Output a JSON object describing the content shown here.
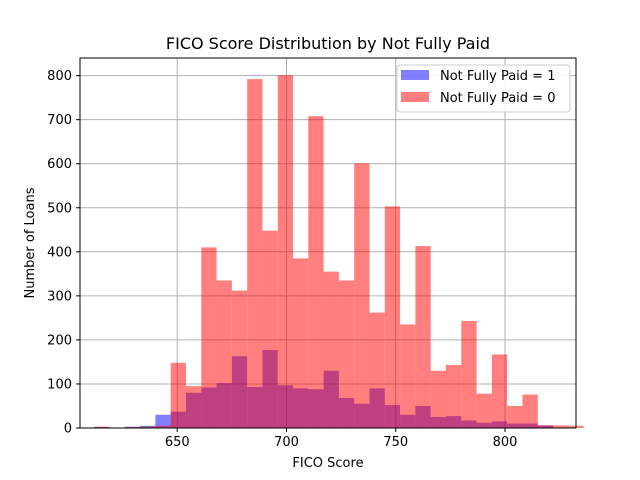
{
  "chart_data": {
    "type": "histogram",
    "title": "FICO Score Distribution by Not Fully Paid",
    "xlabel": "FICO Score",
    "ylabel": "Number of Loans",
    "xlim": [
      605.5,
      832.5
    ],
    "ylim": [
      0,
      840
    ],
    "xticks": [
      650,
      700,
      750,
      800
    ],
    "yticks": [
      0,
      100,
      200,
      300,
      400,
      500,
      600,
      700,
      800
    ],
    "grid": true,
    "legend_position": "top-right",
    "series": [
      {
        "name": "Not Fully Paid = 1",
        "color": "#0000ff",
        "opacity": 0.5,
        "bin_start": 612,
        "bin_width": 7,
        "values": [
          2,
          0,
          3,
          5,
          30,
          37,
          80,
          92,
          102,
          163,
          93,
          177,
          97,
          90,
          88,
          130,
          68,
          55,
          90,
          52,
          30,
          50,
          25,
          27,
          17,
          12,
          15,
          10,
          10,
          6,
          0,
          0
        ]
      },
      {
        "name": "Not Fully Paid = 0",
        "color": "#ff0000",
        "opacity": 0.5,
        "bin_start": 612,
        "bin_width": 7,
        "values": [
          3,
          0,
          2,
          3,
          5,
          148,
          95,
          410,
          335,
          312,
          792,
          448,
          801,
          385,
          708,
          355,
          335,
          601,
          262,
          503,
          235,
          413,
          130,
          143,
          243,
          78,
          167,
          50,
          76,
          6,
          6,
          5
        ]
      }
    ]
  }
}
